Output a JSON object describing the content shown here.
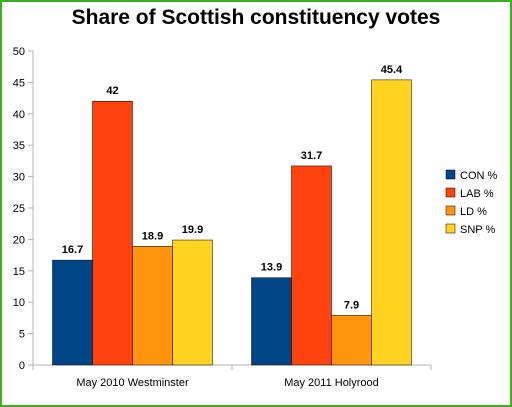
{
  "chart_data": {
    "type": "bar",
    "title": "Share of Scottish constituency votes",
    "xlabel": "",
    "ylabel": "",
    "categories": [
      "May 2010 Westminster",
      "May 2011 Holyrood"
    ],
    "series": [
      {
        "name": "CON %",
        "values": [
          16.7,
          13.9
        ],
        "color": "#004586"
      },
      {
        "name": "LAB %",
        "values": [
          42,
          31.7
        ],
        "color": "#ff420e"
      },
      {
        "name": "LD %",
        "values": [
          18.9,
          7.9
        ],
        "color": "#ff950e"
      },
      {
        "name": "SNP %",
        "values": [
          19.9,
          45.4
        ],
        "color": "#ffd320"
      }
    ],
    "ylim": [
      0,
      50
    ],
    "yticks": [
      0,
      5,
      10,
      15,
      20,
      25,
      30,
      35,
      40,
      45,
      50
    ],
    "grid": false,
    "legend": "right",
    "data_labels": true
  },
  "colors": {
    "frame_border": "#3fae1e",
    "axis_line": "#b3b3b3"
  }
}
